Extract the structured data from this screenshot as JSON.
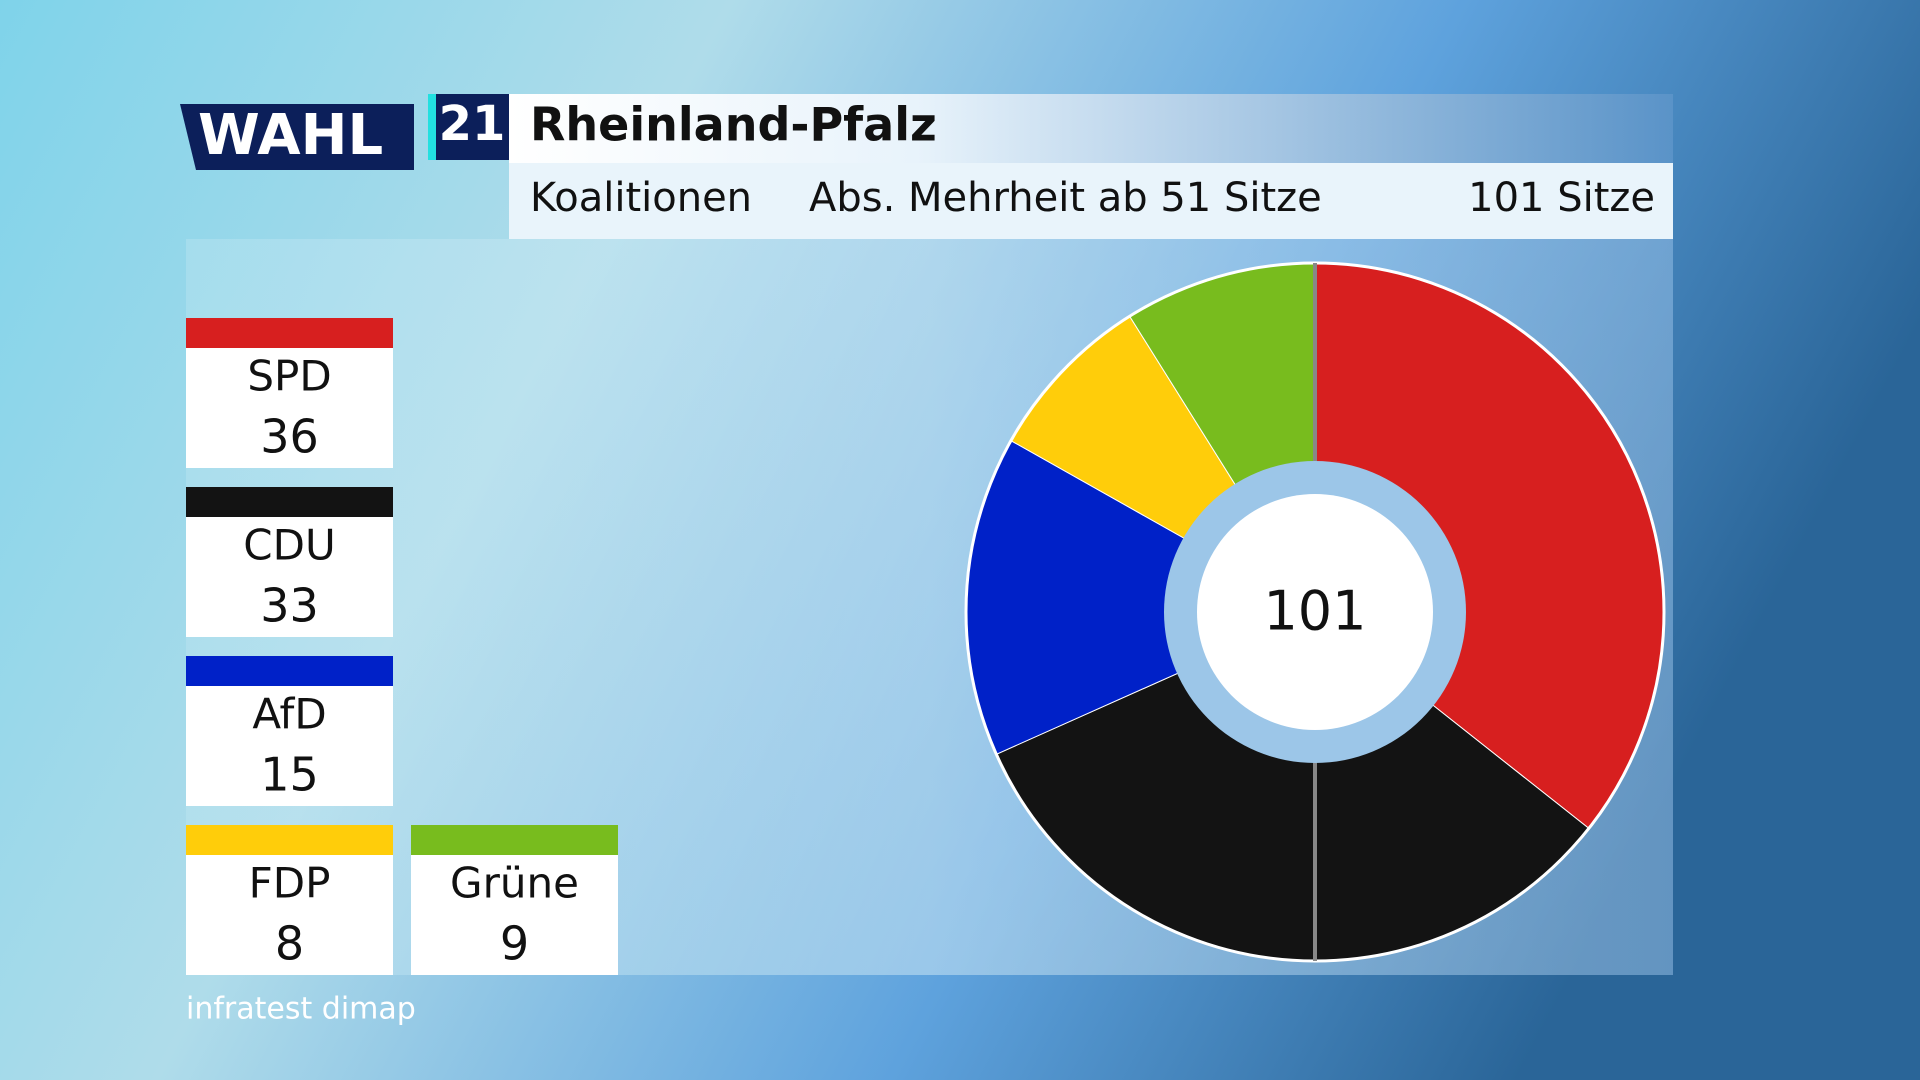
{
  "header": {
    "logo": "WAHL",
    "year": "21",
    "title": "Rheinland-Pfalz",
    "subtitle": "Koalitionen",
    "majority": "Abs. Mehrheit ab 51 Sitze",
    "seats": "101 Sitze"
  },
  "footer": {
    "source": "infratest dimap"
  },
  "chart_data": {
    "type": "pie",
    "categories": [
      "SPD",
      "CDU",
      "AfD",
      "FDP",
      "Grüne"
    ],
    "values": [
      36,
      33,
      15,
      8,
      9
    ],
    "colors": [
      "#d71f1f",
      "#131313",
      "#0021c8",
      "#ffcd0a",
      "#78bc1e"
    ],
    "total": 101
  }
}
